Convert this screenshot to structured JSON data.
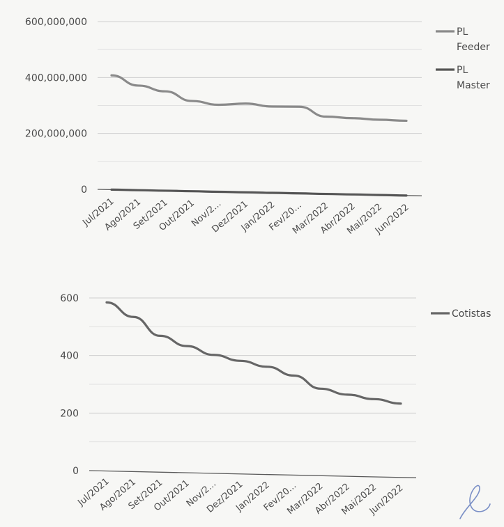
{
  "chart_data": [
    {
      "type": "line",
      "categories": [
        "Jul/2021",
        "Ago/2021",
        "Set/2021",
        "Out/2021",
        "Nov/2...",
        "Dez/2021",
        "Jan/2022",
        "Fev/20...",
        "Mar/2022",
        "Abr/2022",
        "Mai/2022",
        "Jun/2022"
      ],
      "series": [
        {
          "name_lines": [
            "PL",
            "Feeder"
          ],
          "color": "#8a8a8a",
          "values": [
            408000000,
            372000000,
            352000000,
            318000000,
            305000000,
            310000000,
            300000000,
            300000000,
            265000000,
            260000000,
            255000000,
            252000000
          ]
        },
        {
          "name_lines": [
            "PL",
            "Master"
          ],
          "color": "#555555",
          "values": [
            0,
            0,
            0,
            0,
            0,
            0,
            0,
            0,
            0,
            0,
            0,
            0
          ]
        }
      ],
      "y_ticks": [
        "600,000,000",
        "400,000,000",
        "200,000,000",
        "0"
      ],
      "ylim": [
        0,
        600000000
      ],
      "grid": true,
      "legend": "right"
    },
    {
      "type": "line",
      "categories": [
        "Jul/2021",
        "Ago/2021",
        "Set/2021",
        "Out/2021",
        "Nov/2...",
        "Dez/2021",
        "Jan/2022",
        "Fev/20...",
        "Mar/2022",
        "Abr/2022",
        "Mai/2022",
        "Jun/2022"
      ],
      "series": [
        {
          "name_lines": [
            "Cotistas"
          ],
          "color": "#666666",
          "values": [
            585,
            535,
            470,
            435,
            405,
            385,
            365,
            335,
            290,
            270,
            255,
            240
          ]
        }
      ],
      "y_ticks": [
        "600",
        "400",
        "200",
        "0"
      ],
      "ylim": [
        0,
        600
      ],
      "grid": true,
      "legend": "right"
    }
  ]
}
